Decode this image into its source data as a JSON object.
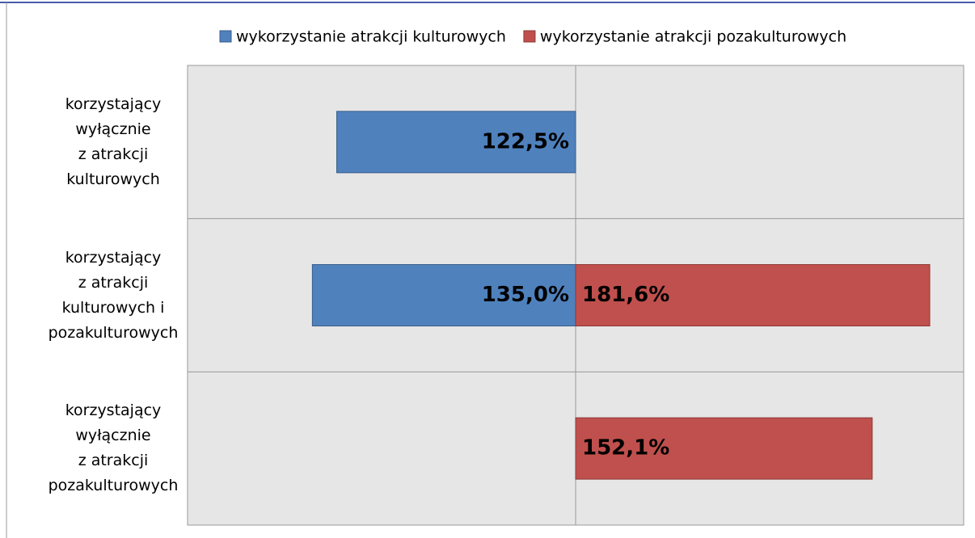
{
  "chart_data": {
    "type": "diverging-bar",
    "categories": [
      "korzystający\nwyłącznie\nz atrakcji\nkulturowych",
      "korzystający\nz atrakcji\nkulturowych i\npozakulturowych",
      "korzystający\nwyłącznie\nz atrakcji\npozakulturowych"
    ],
    "series": [
      {
        "name": "wykorzystanie atrakcji kulturowych",
        "color": "#4f81bd",
        "side": "left",
        "values": [
          122.5,
          135.0,
          null
        ],
        "value_labels": [
          "122,5%",
          "135,0%",
          null
        ]
      },
      {
        "name": "wykorzystanie atrakcji pozakulturowych",
        "color": "#c0504d",
        "side": "right",
        "values": [
          null,
          181.6,
          152.1
        ],
        "value_labels": [
          null,
          "181,6%",
          "152,1%"
        ]
      }
    ],
    "xlim": [
      0,
      199
    ],
    "legend": "top",
    "grid": true
  }
}
